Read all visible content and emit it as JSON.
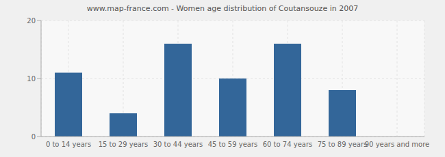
{
  "chart_data": {
    "type": "bar",
    "title": "www.map-france.com - Women age distribution of Coutansouze in 2007",
    "categories": [
      "0 to 14 years",
      "15 to 29 years",
      "30 to 44 years",
      "45 to 59 years",
      "60 to 74 years",
      "75 to 89 years",
      "90 years and more"
    ],
    "values": [
      11,
      4,
      16,
      10,
      16,
      8,
      0
    ],
    "color": "#336699",
    "ylim": [
      0,
      20
    ],
    "yticks": [
      0,
      10,
      20
    ],
    "grid": true
  }
}
